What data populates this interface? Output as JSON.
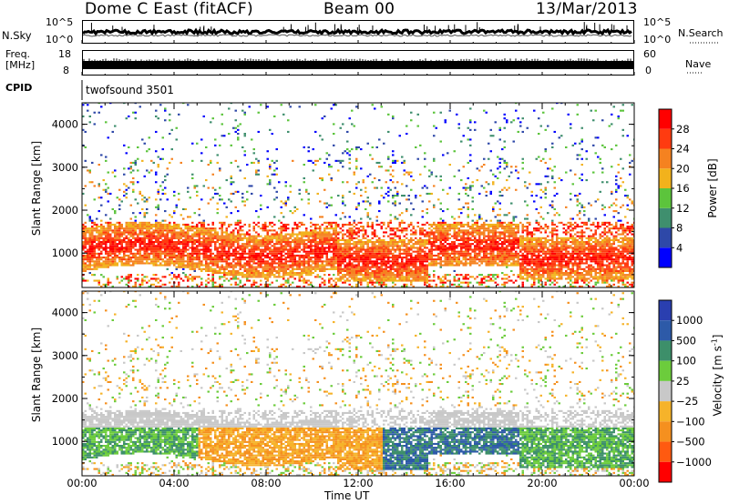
{
  "header": {
    "station": "Dome C East (fitACF)",
    "beam": "Beam 00",
    "date": "13/Mar/2013"
  },
  "top_panels": {
    "nsky_label": "N.Sky",
    "nsky_ticks": [
      "10^5",
      "10^0"
    ],
    "nsearch_label": "N.Search",
    "nsearch_ticks": [
      "10^5",
      "10^0"
    ],
    "freq_label_line1": "Freq.",
    "freq_label_line2": "[MHz]",
    "freq_ticks": [
      "18",
      "8"
    ],
    "nave_label": "Nave",
    "nave_ticks": [
      "60",
      "0"
    ],
    "cpid_label": "CPID",
    "cpid_value": "twofsound 3501"
  },
  "colors": {
    "power_scale": [
      "#0000ff",
      "#2e48a8",
      "#3f8f6e",
      "#5cc43c",
      "#f2b21c",
      "#f58220",
      "#ff3b10",
      "#ff0000"
    ],
    "velocity_scale": [
      "#ff0000",
      "#ff5a10",
      "#f5901f",
      "#f6b32a",
      "#c8c8c8",
      "#6ccc3c",
      "#3d8f6a",
      "#2d5aa8",
      "#2a3fb0"
    ]
  },
  "chart_data": [
    {
      "type": "heatmap",
      "panel": "power",
      "ylabel": "Slant Range [km]",
      "yticks": [
        "1000",
        "2000",
        "3000",
        "4000"
      ],
      "ylim": [
        200,
        4500
      ],
      "xlim_hours": [
        0,
        24
      ],
      "colorbar_label": "Power [dB]",
      "colorbar_ticks": [
        "4",
        "8",
        "12",
        "16",
        "20",
        "24",
        "28"
      ],
      "colorbar_range": [
        0,
        32
      ]
    },
    {
      "type": "heatmap",
      "panel": "velocity",
      "ylabel": "Slant Range [km]",
      "yticks": [
        "1000",
        "2000",
        "3000",
        "4000"
      ],
      "ylim": [
        200,
        4500
      ],
      "xlim_hours": [
        0,
        24
      ],
      "colorbar_label": "Velocity [m s",
      "colorbar_label_sup": "-1",
      "colorbar_label_end": "]",
      "colorbar_ticks": [
        "1000",
        "500",
        "100",
        "25",
        "−25",
        "−100",
        "−500",
        "−1000"
      ]
    }
  ],
  "x_axis": {
    "ticks": [
      "00:00",
      "04:00",
      "08:00",
      "12:00",
      "16:00",
      "20:00",
      "00:00"
    ],
    "label": "Time UT"
  }
}
